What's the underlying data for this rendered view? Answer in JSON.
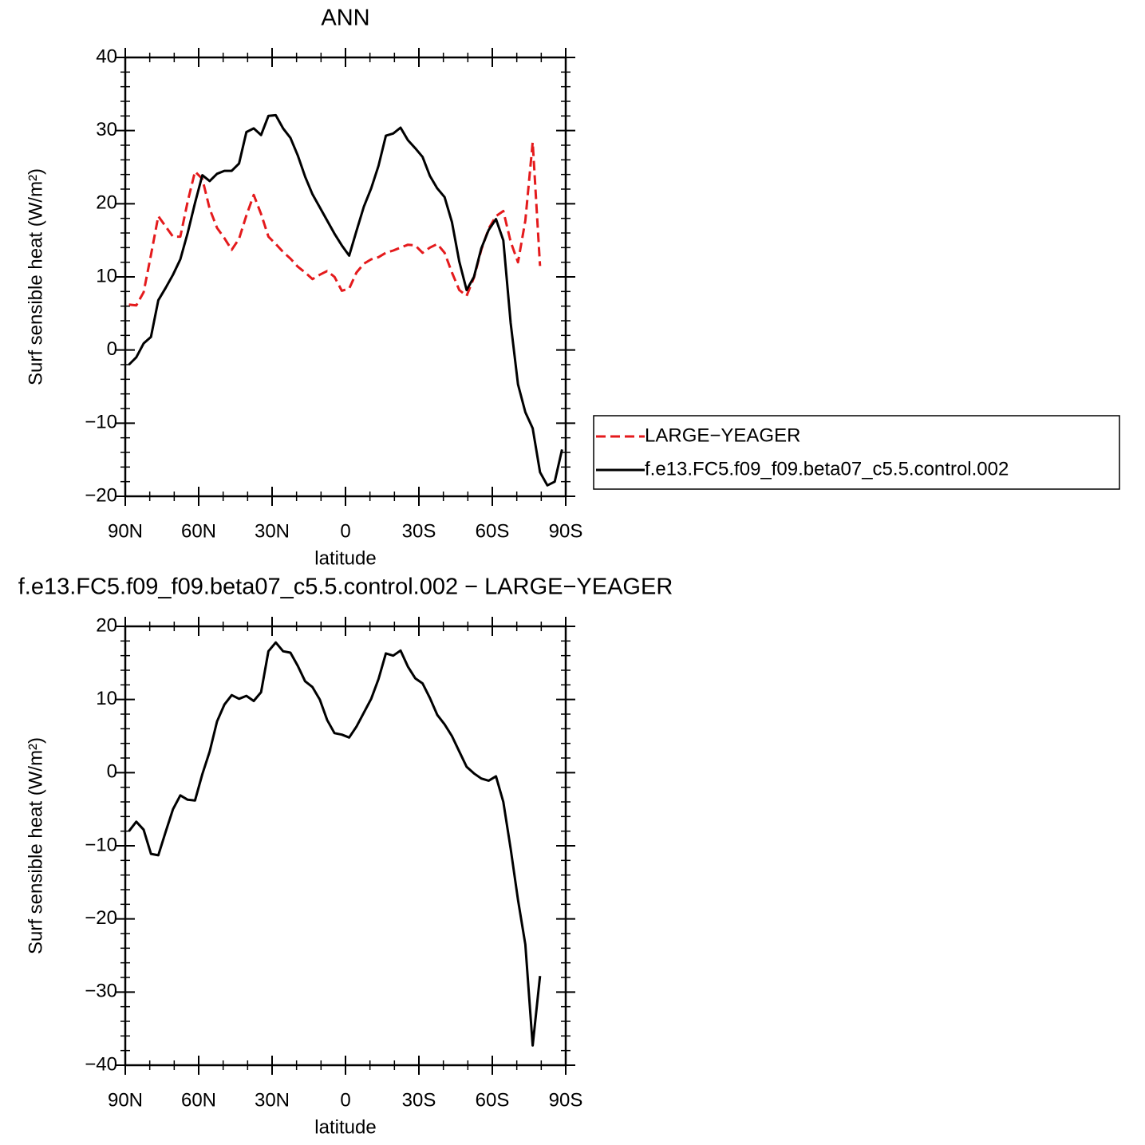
{
  "chart_data": [
    {
      "type": "line",
      "title": "ANN",
      "xlabel": "latitude",
      "ylabel": "Surf sensible heat (W/m²)",
      "x": [
        88.5,
        85.5,
        82.5,
        79.5,
        76.5,
        73.5,
        70.5,
        67.5,
        64.5,
        61.5,
        58.5,
        55.5,
        52.5,
        49.5,
        46.5,
        43.5,
        40.5,
        37.5,
        34.5,
        31.5,
        28.5,
        25.5,
        22.5,
        19.5,
        16.5,
        13.5,
        10.5,
        7.5,
        4.5,
        1.5,
        -1.5,
        -4.5,
        -7.5,
        -10.5,
        -13.5,
        -16.5,
        -19.5,
        -22.5,
        -25.5,
        -28.5,
        -31.5,
        -34.5,
        -37.5,
        -40.5,
        -43.5,
        -46.5,
        -49.5,
        -52.5,
        -55.5,
        -58.5,
        -61.5,
        -64.5,
        -67.5,
        -70.5,
        -73.5,
        -76.5,
        -79.5,
        -82.5,
        -85.5,
        -88.5
      ],
      "series": [
        {
          "name": "LARGE−YEAGER",
          "color": "#e41a1c",
          "dashed": true,
          "values": [
            6.2,
            6.1,
            7.9,
            13.0,
            18.3,
            16.9,
            15.5,
            15.5,
            20.3,
            24.4,
            23.4,
            19.3,
            16.7,
            15.3,
            13.7,
            15.2,
            18.4,
            21.2,
            18.6,
            15.5,
            14.5,
            13.4,
            12.5,
            11.4,
            10.6,
            9.7,
            10.3,
            10.8,
            10.0,
            8.1,
            8.4,
            10.6,
            11.8,
            12.4,
            12.7,
            13.3,
            13.6,
            14.0,
            14.4,
            14.3,
            13.3,
            14.0,
            14.5,
            13.3,
            10.6,
            8.2,
            7.4,
            9.9,
            13.7,
            16.6,
            18.3,
            19.0,
            14.8,
            12.0,
            17.7,
            28.4,
            11.5,
            null,
            null,
            null
          ]
        },
        {
          "name": "f.e13.FC5.f09_f09.beta07_c5.5.control.002",
          "color": "#000000",
          "dashed": false,
          "values": [
            -2.0,
            -1.0,
            0.9,
            1.8,
            6.8,
            8.5,
            10.3,
            12.4,
            16.0,
            20.1,
            23.9,
            23.1,
            24.1,
            24.5,
            24.5,
            25.5,
            29.8,
            30.3,
            29.4,
            32.0,
            32.1,
            30.3,
            29.0,
            26.6,
            23.7,
            21.3,
            19.5,
            17.7,
            15.9,
            14.3,
            12.9,
            16.3,
            19.6,
            22.1,
            25.2,
            29.3,
            29.6,
            30.4,
            28.7,
            27.6,
            26.4,
            23.8,
            22.1,
            20.9,
            17.5,
            12.1,
            8.2,
            10.0,
            13.9,
            16.4,
            17.9,
            15.0,
            3.7,
            -4.7,
            -8.5,
            -10.7,
            -16.7,
            -18.5,
            -18.0,
            -13.6
          ]
        }
      ],
      "xlim": [
        90,
        -90
      ],
      "xticks": [
        {
          "value": 90,
          "label": "90N"
        },
        {
          "value": 60,
          "label": "60N"
        },
        {
          "value": 30,
          "label": "30N"
        },
        0,
        {
          "value": -30,
          "label": "30S"
        },
        {
          "value": -60,
          "label": "60S"
        },
        {
          "value": -90,
          "label": "90S"
        }
      ],
      "ylim": [
        -20,
        40
      ],
      "yticks": [
        {
          "value": -20,
          "label": "−20"
        },
        {
          "value": -10,
          "label": "−10"
        },
        0,
        10,
        20,
        30,
        40
      ],
      "legend": "right"
    },
    {
      "type": "line",
      "title": "f.e13.FC5.f09_f09.beta07_c5.5.control.002 − LARGE−YEAGER",
      "xlabel": "latitude",
      "ylabel": "Surf sensible heat (W/m²)",
      "x": [
        88.5,
        85.5,
        82.5,
        79.5,
        76.5,
        73.5,
        70.5,
        67.5,
        64.5,
        61.5,
        58.5,
        55.5,
        52.5,
        49.5,
        46.5,
        43.5,
        40.5,
        37.5,
        34.5,
        31.5,
        28.5,
        25.5,
        22.5,
        19.5,
        16.5,
        13.5,
        10.5,
        7.5,
        4.5,
        1.5,
        -1.5,
        -4.5,
        -7.5,
        -10.5,
        -13.5,
        -16.5,
        -19.5,
        -22.5,
        -25.5,
        -28.5,
        -31.5,
        -34.5,
        -37.5,
        -40.5,
        -43.5,
        -46.5,
        -49.5,
        -52.5,
        -55.5,
        -58.5,
        -61.5,
        -64.5,
        -67.5,
        -70.5,
        -73.5,
        -76.5,
        -79.5,
        -82.5,
        -85.5,
        -88.5
      ],
      "series": [
        {
          "color": "#000000",
          "dashed": false,
          "values": [
            -8.0,
            -6.7,
            -7.8,
            -11.1,
            -11.3,
            -8.1,
            -5.0,
            -3.1,
            -3.7,
            -3.8,
            -0.2,
            2.9,
            7.0,
            9.3,
            10.6,
            10.1,
            10.5,
            9.8,
            11.0,
            16.6,
            17.8,
            16.6,
            16.4,
            14.6,
            12.5,
            11.7,
            10.0,
            7.2,
            5.4,
            5.2,
            4.8,
            6.3,
            8.2,
            10.1,
            12.8,
            16.3,
            16.0,
            16.7,
            14.5,
            12.9,
            12.2,
            10.2,
            7.9,
            6.6,
            5.0,
            2.9,
            0.8,
            -0.1,
            -0.8,
            -1.1,
            -0.5,
            -4.0,
            -10.4,
            -17.4,
            -23.5,
            -37.3,
            -27.8,
            null,
            null,
            null
          ]
        }
      ],
      "xlim": [
        90,
        -90
      ],
      "xticks": [
        {
          "value": 90,
          "label": "90N"
        },
        {
          "value": 60,
          "label": "60N"
        },
        {
          "value": 30,
          "label": "30N"
        },
        0,
        {
          "value": -30,
          "label": "30S"
        },
        {
          "value": -60,
          "label": "60S"
        },
        {
          "value": -90,
          "label": "90S"
        }
      ],
      "ylim": [
        -40,
        20
      ],
      "yticks": [
        {
          "value": -40,
          "label": "−40"
        },
        {
          "value": -30,
          "label": "−30"
        },
        {
          "value": -20,
          "label": "−20"
        },
        {
          "value": -10,
          "label": "−10"
        },
        0,
        10,
        20
      ]
    }
  ]
}
